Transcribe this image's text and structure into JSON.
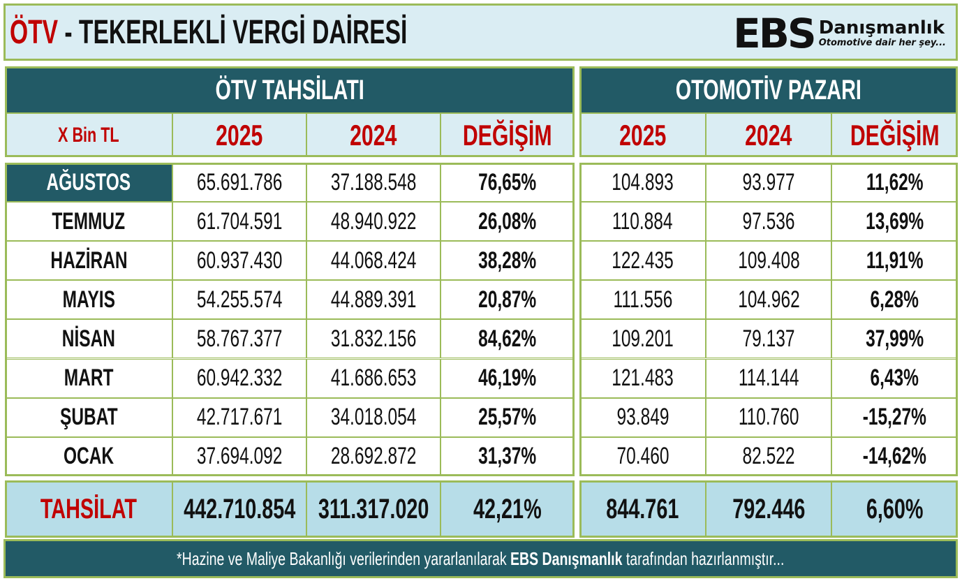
{
  "title": {
    "highlight": "ÖTV",
    "rest": " - TEKERLEKLİ VERGİ DAİRESİ"
  },
  "logo": {
    "mark": "EBS",
    "name": "Danışmanlık",
    "tagline": "Otomotive dair her şey..."
  },
  "tax_panel": {
    "title": "ÖTV TAHSİLATI",
    "unit_label": "X Bin TL",
    "columns": [
      "2025",
      "2024",
      "DEĞİŞİM"
    ]
  },
  "market_panel": {
    "title": "OTOMOTİV PAZARI",
    "columns": [
      "2025",
      "2024",
      "DEĞİŞİM"
    ]
  },
  "rows": [
    {
      "month": "AĞUSTOS",
      "tax_2025": "65.691.786",
      "tax_2024": "37.188.548",
      "tax_change": "76,65%",
      "mkt_2025": "104.893",
      "mkt_2024": "93.977",
      "mkt_change": "11,62%"
    },
    {
      "month": "TEMMUZ",
      "tax_2025": "61.704.591",
      "tax_2024": "48.940.922",
      "tax_change": "26,08%",
      "mkt_2025": "110.884",
      "mkt_2024": "97.536",
      "mkt_change": "13,69%"
    },
    {
      "month": "HAZİRAN",
      "tax_2025": "60.937.430",
      "tax_2024": "44.068.424",
      "tax_change": "38,28%",
      "mkt_2025": "122.435",
      "mkt_2024": "109.408",
      "mkt_change": "11,91%"
    },
    {
      "month": "MAYIS",
      "tax_2025": "54.255.574",
      "tax_2024": "44.889.391",
      "tax_change": "20,87%",
      "mkt_2025": "111.556",
      "mkt_2024": "104.962",
      "mkt_change": "6,28%"
    },
    {
      "month": "NİSAN",
      "tax_2025": "58.767.377",
      "tax_2024": "31.832.156",
      "tax_change": "84,62%",
      "mkt_2025": "109.201",
      "mkt_2024": "79.137",
      "mkt_change": "37,99%"
    },
    {
      "month": "MART",
      "tax_2025": "60.942.332",
      "tax_2024": "41.686.653",
      "tax_change": "46,19%",
      "mkt_2025": "121.483",
      "mkt_2024": "114.144",
      "mkt_change": "6,43%"
    },
    {
      "month": "ŞUBAT",
      "tax_2025": "42.717.671",
      "tax_2024": "34.018.054",
      "tax_change": "25,57%",
      "mkt_2025": "93.849",
      "mkt_2024": "110.760",
      "mkt_change": "-15,27%"
    },
    {
      "month": "OCAK",
      "tax_2025": "37.694.092",
      "tax_2024": "28.692.872",
      "tax_change": "31,37%",
      "mkt_2025": "70.460",
      "mkt_2024": "82.522",
      "mkt_change": "-14,62%"
    }
  ],
  "totals": {
    "label": "TAHSİLAT",
    "tax_2025": "442.710.854",
    "tax_2024": "311.317.020",
    "tax_change": "42,21%",
    "mkt_2025": "844.761",
    "mkt_2024": "792.446",
    "mkt_change": "6,60%"
  },
  "footer": {
    "prefix": "*Hazine ve Maliye Bakanlığı verilerinden yararlanılarak ",
    "brand": "EBS Danışmanlık",
    "suffix": " tarafından hazırlanmıştır..."
  },
  "colors": {
    "accent_red": "#c00000",
    "header_teal": "#225a66",
    "border_green": "#9bbb59",
    "light_blue": "#daedf3",
    "total_blue": "#b7dde8"
  }
}
